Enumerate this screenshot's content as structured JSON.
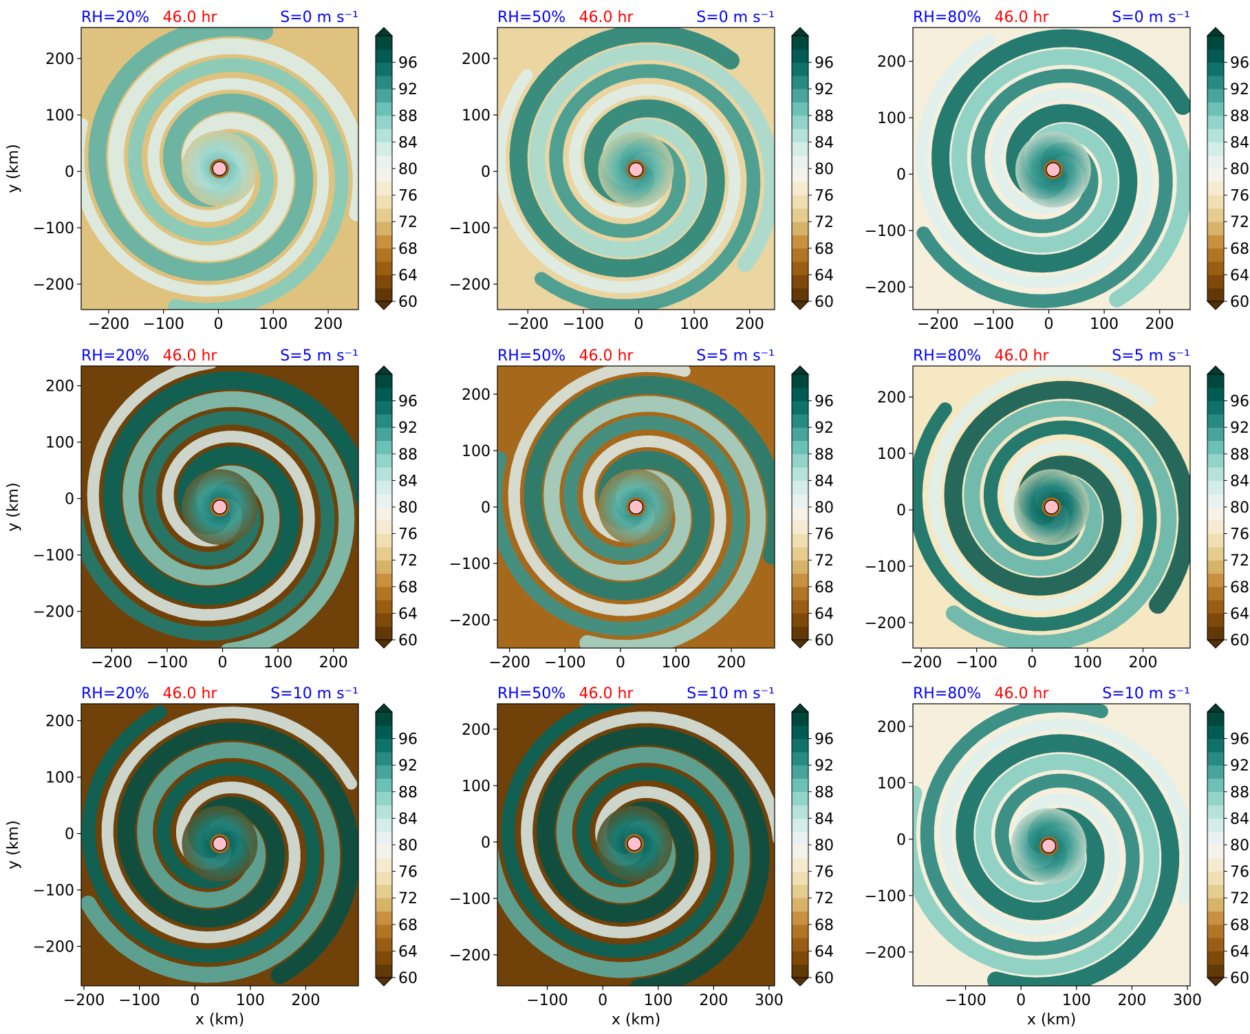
{
  "figure": {
    "colors": {
      "title_blue": "#0000ff",
      "title_red": "#ff0000",
      "center_marker": "#ffc0cb",
      "colormap": "BrBG"
    }
  },
  "chart_data": [
    {
      "type": "heatmap",
      "row": 0,
      "col": 0,
      "title_left": "RH=20%",
      "title_center": "46.0 hr",
      "title_right": "S=0 m s⁻¹",
      "xlabel": "",
      "ylabel": "y (km)",
      "xlim": [
        -250,
        255
      ],
      "ylim": [
        -245,
        255
      ],
      "xticks": [
        -200,
        -100,
        0,
        100,
        200
      ],
      "yticks": [
        -200,
        -100,
        0,
        100,
        200
      ],
      "center": [
        2,
        5
      ],
      "colorbar": {
        "min": 60,
        "max": 100,
        "ticks": [
          60,
          64,
          68,
          72,
          76,
          80,
          84,
          88,
          92,
          96
        ],
        "extend": "both"
      }
    },
    {
      "type": "heatmap",
      "row": 0,
      "col": 1,
      "title_left": "RH=50%",
      "title_center": "46.0 hr",
      "title_right": "S=0 m s⁻¹",
      "xlabel": "",
      "ylabel": "",
      "xlim": [
        -255,
        245
      ],
      "ylim": [
        -245,
        255
      ],
      "xticks": [
        -200,
        -100,
        0,
        100,
        200
      ],
      "yticks": [
        -200,
        -100,
        0,
        100,
        200
      ],
      "center": [
        -5,
        3
      ],
      "colorbar": {
        "min": 60,
        "max": 100,
        "ticks": [
          60,
          64,
          68,
          72,
          76,
          80,
          84,
          88,
          92,
          96
        ],
        "extend": "both"
      }
    },
    {
      "type": "heatmap",
      "row": 0,
      "col": 2,
      "title_left": "RH=80%",
      "title_center": "46.0 hr",
      "title_right": "S=0 m s⁻¹",
      "xlabel": "",
      "ylabel": "",
      "xlim": [
        -245,
        255
      ],
      "ylim": [
        -240,
        260
      ],
      "xticks": [
        -200,
        -100,
        0,
        100,
        200
      ],
      "yticks": [
        -200,
        -100,
        0,
        100,
        200
      ],
      "center": [
        8,
        8
      ],
      "colorbar": {
        "min": 60,
        "max": 100,
        "ticks": [
          60,
          64,
          68,
          72,
          76,
          80,
          84,
          88,
          92,
          96
        ],
        "extend": "both"
      }
    },
    {
      "type": "heatmap",
      "row": 1,
      "col": 0,
      "title_left": "RH=20%",
      "title_center": "46.0 hr",
      "title_right": "S=5 m s⁻¹",
      "xlabel": "",
      "ylabel": "y (km)",
      "xlim": [
        -255,
        245
      ],
      "ylim": [
        -265,
        235
      ],
      "xticks": [
        -200,
        -100,
        0,
        100,
        200
      ],
      "yticks": [
        -200,
        -100,
        0,
        100,
        200
      ],
      "center": [
        -5,
        -15
      ],
      "colorbar": {
        "min": 60,
        "max": 100,
        "ticks": [
          60,
          64,
          68,
          72,
          76,
          80,
          84,
          88,
          92,
          96
        ],
        "extend": "both"
      }
    },
    {
      "type": "heatmap",
      "row": 1,
      "col": 1,
      "title_left": "RH=50%",
      "title_center": "46.0 hr",
      "title_right": "S=5 m s⁻¹",
      "xlabel": "",
      "ylabel": "",
      "xlim": [
        -222,
        278
      ],
      "ylim": [
        -250,
        250
      ],
      "xticks": [
        -200,
        -100,
        0,
        100,
        200
      ],
      "yticks": [
        -200,
        -100,
        0,
        100,
        200
      ],
      "center": [
        28,
        0
      ],
      "colorbar": {
        "min": 60,
        "max": 100,
        "ticks": [
          60,
          64,
          68,
          72,
          76,
          80,
          84,
          88,
          92,
          96
        ],
        "extend": "both"
      }
    },
    {
      "type": "heatmap",
      "row": 1,
      "col": 2,
      "title_left": "RH=80%",
      "title_center": "46.0 hr",
      "title_right": "S=5 m s⁻¹",
      "xlabel": "",
      "ylabel": "",
      "xlim": [
        -215,
        285
      ],
      "ylim": [
        -245,
        255
      ],
      "xticks": [
        -200,
        -100,
        0,
        100,
        200
      ],
      "yticks": [
        -200,
        -100,
        0,
        100,
        200
      ],
      "center": [
        35,
        5
      ],
      "colorbar": {
        "min": 60,
        "max": 100,
        "ticks": [
          60,
          64,
          68,
          72,
          76,
          80,
          84,
          88,
          92,
          96
        ],
        "extend": "both"
      }
    },
    {
      "type": "heatmap",
      "row": 2,
      "col": 0,
      "title_left": "RH=20%",
      "title_center": "46.0 hr",
      "title_right": "S=10 m s⁻¹",
      "xlabel": "x (km)",
      "ylabel": "y (km)",
      "xlim": [
        -205,
        295
      ],
      "ylim": [
        -270,
        230
      ],
      "xticks": [
        -200,
        -100,
        0,
        100,
        200
      ],
      "yticks": [
        -200,
        -100,
        0,
        100,
        200
      ],
      "center": [
        45,
        -18
      ],
      "colorbar": {
        "min": 60,
        "max": 100,
        "ticks": [
          60,
          64,
          68,
          72,
          76,
          80,
          84,
          88,
          92,
          96
        ],
        "extend": "both"
      }
    },
    {
      "type": "heatmap",
      "row": 2,
      "col": 1,
      "title_left": "RH=50%",
      "title_center": "46.0 hr",
      "title_right": "S=10 m s⁻¹",
      "xlabel": "x (km)",
      "ylabel": "",
      "xlim": [
        -190,
        310
      ],
      "ylim": [
        -255,
        245
      ],
      "xticks": [
        -100,
        0,
        100,
        200,
        300
      ],
      "yticks": [
        -200,
        -100,
        0,
        100,
        200
      ],
      "center": [
        57,
        -3
      ],
      "colorbar": {
        "min": 60,
        "max": 100,
        "ticks": [
          60,
          64,
          68,
          72,
          76,
          80,
          84,
          88,
          92,
          96
        ],
        "extend": "both"
      }
    },
    {
      "type": "heatmap",
      "row": 2,
      "col": 2,
      "title_left": "RH=80%",
      "title_center": "46.0 hr",
      "title_right": "S=10 m s⁻¹",
      "xlabel": "x (km)",
      "ylabel": "",
      "xlim": [
        -195,
        305
      ],
      "ylim": [
        -260,
        240
      ],
      "xticks": [
        -100,
        0,
        100,
        200,
        300
      ],
      "yticks": [
        -200,
        -100,
        0,
        100,
        200
      ],
      "center": [
        50,
        -12
      ],
      "colorbar": {
        "min": 60,
        "max": 100,
        "ticks": [
          60,
          64,
          68,
          72,
          76,
          80,
          84,
          88,
          92,
          96
        ],
        "extend": "both"
      }
    }
  ]
}
